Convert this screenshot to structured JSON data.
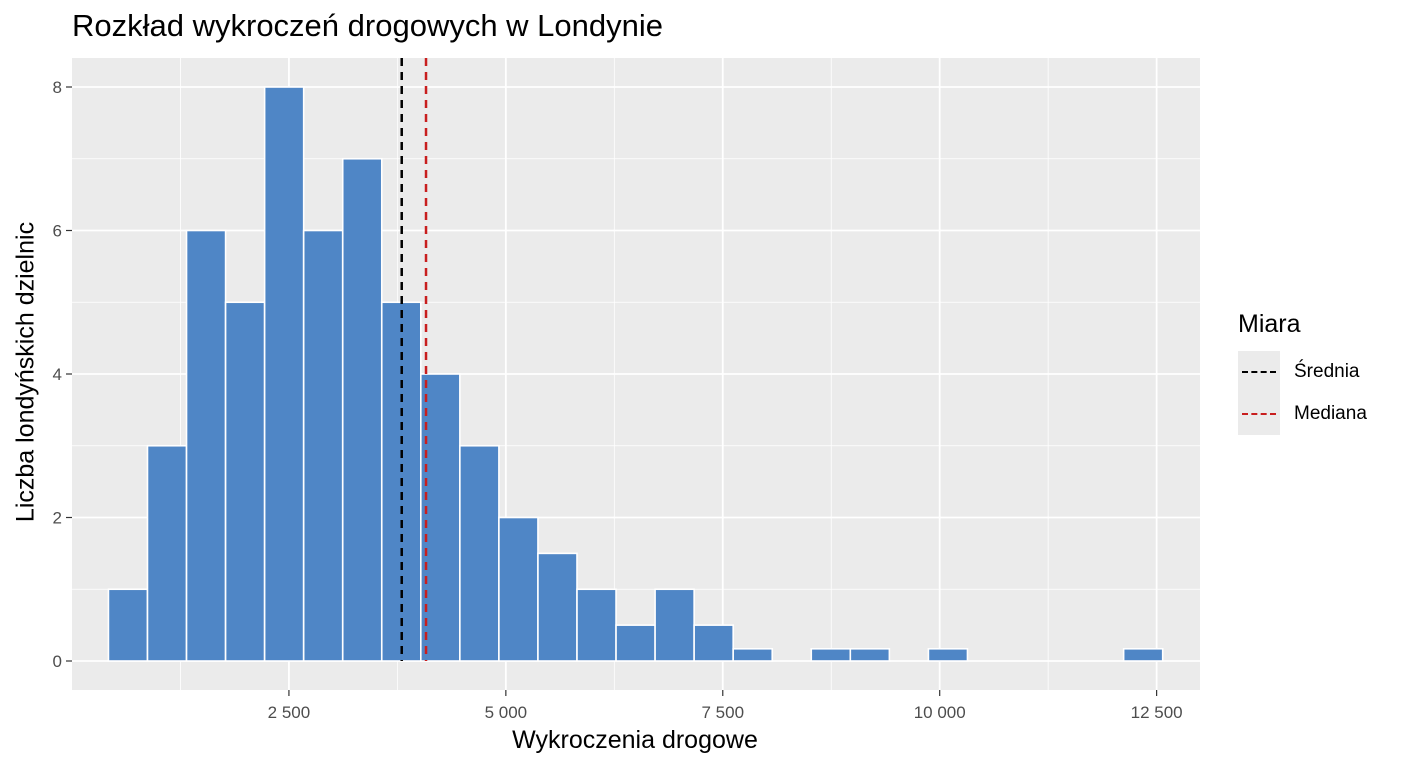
{
  "chart_data": {
    "type": "bar",
    "title": "Rozkład wykroczeń drogowych w Londynie",
    "xlabel": "Wykroczenia drogowe",
    "ylabel": "Liczba londyńskich dzielnic",
    "xlim": [
      0,
      13000
    ],
    "ylim": [
      0,
      8
    ],
    "x_ticks": [
      2500,
      5000,
      7500,
      10000,
      12500
    ],
    "x_tick_labels": [
      "2 500",
      "5 000",
      "7 500",
      "10 000",
      "12 500"
    ],
    "y_ticks": [
      0,
      2,
      4,
      6,
      8
    ],
    "y_tick_labels": [
      "0",
      "2",
      "4",
      "6",
      "8"
    ],
    "grid": true,
    "bar_color": "#4f86c6",
    "bins": [
      {
        "x0": 420,
        "x1": 870,
        "count": 1
      },
      {
        "x0": 870,
        "x1": 1320,
        "count": 3
      },
      {
        "x0": 1320,
        "x1": 1770,
        "count": 6
      },
      {
        "x0": 1770,
        "x1": 2220,
        "count": 5
      },
      {
        "x0": 2220,
        "x1": 2670,
        "count": 8
      },
      {
        "x0": 2670,
        "x1": 3120,
        "count": 6
      },
      {
        "x0": 3120,
        "x1": 3570,
        "count": 7
      },
      {
        "x0": 3570,
        "x1": 4020,
        "count": 5
      },
      {
        "x0": 4020,
        "x1": 4470,
        "count": 4
      },
      {
        "x0": 4470,
        "x1": 4920,
        "count": 3
      },
      {
        "x0": 4920,
        "x1": 5370,
        "count": 2
      },
      {
        "x0": 5370,
        "x1": 5820,
        "count": 1.5
      },
      {
        "x0": 5820,
        "x1": 6270,
        "count": 1
      },
      {
        "x0": 6270,
        "x1": 6720,
        "count": 0.5
      },
      {
        "x0": 6720,
        "x1": 7170,
        "count": 1
      },
      {
        "x0": 7170,
        "x1": 7620,
        "count": 0.5
      },
      {
        "x0": 7620,
        "x1": 8070,
        "count": 0.17
      },
      {
        "x0": 8520,
        "x1": 8970,
        "count": 0.17
      },
      {
        "x0": 8970,
        "x1": 9420,
        "count": 0.17
      },
      {
        "x0": 9870,
        "x1": 10320,
        "count": 0.17
      },
      {
        "x0": 12120,
        "x1": 12570,
        "count": 0.17
      }
    ],
    "vlines": [
      {
        "name": "Średnia",
        "x": 3800,
        "color": "#000000"
      },
      {
        "name": "Mediana",
        "x": 4080,
        "color": "#c81e1e"
      }
    ],
    "legend": {
      "title": "Miara",
      "position": "right",
      "items": [
        {
          "label": "Średnia",
          "color": "#000000"
        },
        {
          "label": "Mediana",
          "color": "#c81e1e"
        }
      ]
    }
  }
}
